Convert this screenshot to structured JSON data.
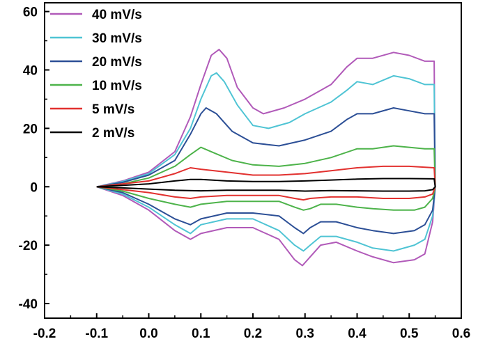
{
  "chart_data": {
    "type": "line",
    "title": "",
    "xlabel": "",
    "ylabel": "",
    "xlim": [
      -0.2,
      0.6
    ],
    "ylim": [
      -45,
      63
    ],
    "xticks": [
      "-0.2",
      "-0.1",
      "0.0",
      "0.1",
      "0.2",
      "0.3",
      "0.4",
      "0.5",
      "0.6"
    ],
    "yticks": [
      "60",
      "40",
      "20",
      "0",
      "-20",
      "-40"
    ],
    "xtick_values": [
      -0.2,
      -0.1,
      0.0,
      0.1,
      0.2,
      0.3,
      0.4,
      0.5,
      0.6
    ],
    "ytick_values": [
      60,
      40,
      20,
      0,
      -20,
      -40
    ],
    "grid": false,
    "legend_position": "top-left",
    "series": [
      {
        "name": "40 mV/s",
        "color": "#b15ab9",
        "anodic": [
          [
            -0.1,
            0
          ],
          [
            -0.05,
            2
          ],
          [
            0.0,
            5
          ],
          [
            0.05,
            12
          ],
          [
            0.08,
            24
          ],
          [
            0.1,
            35
          ],
          [
            0.12,
            45
          ],
          [
            0.135,
            47
          ],
          [
            0.15,
            44
          ],
          [
            0.17,
            34
          ],
          [
            0.2,
            27
          ],
          [
            0.22,
            25
          ],
          [
            0.26,
            27
          ],
          [
            0.3,
            30
          ],
          [
            0.35,
            35
          ],
          [
            0.38,
            41
          ],
          [
            0.4,
            44
          ],
          [
            0.43,
            44
          ],
          [
            0.47,
            46
          ],
          [
            0.5,
            45
          ],
          [
            0.53,
            43
          ],
          [
            0.548,
            43
          ]
        ],
        "cathodic": [
          [
            0.55,
            0
          ],
          [
            0.545,
            -12
          ],
          [
            0.53,
            -23
          ],
          [
            0.51,
            -25
          ],
          [
            0.47,
            -26
          ],
          [
            0.43,
            -24
          ],
          [
            0.4,
            -22
          ],
          [
            0.36,
            -19
          ],
          [
            0.33,
            -20
          ],
          [
            0.31,
            -24
          ],
          [
            0.295,
            -27
          ],
          [
            0.28,
            -25
          ],
          [
            0.25,
            -18
          ],
          [
            0.2,
            -14
          ],
          [
            0.15,
            -14
          ],
          [
            0.1,
            -16
          ],
          [
            0.08,
            -18
          ],
          [
            0.05,
            -15
          ],
          [
            0.0,
            -8
          ],
          [
            -0.05,
            -3
          ],
          [
            -0.1,
            0
          ]
        ]
      },
      {
        "name": "30 mV/s",
        "color": "#4fc4d4",
        "anodic": [
          [
            -0.1,
            0
          ],
          [
            -0.05,
            1.8
          ],
          [
            0.0,
            4.5
          ],
          [
            0.05,
            11
          ],
          [
            0.08,
            20
          ],
          [
            0.1,
            30
          ],
          [
            0.12,
            38
          ],
          [
            0.13,
            39
          ],
          [
            0.145,
            36
          ],
          [
            0.17,
            28
          ],
          [
            0.2,
            21
          ],
          [
            0.23,
            20
          ],
          [
            0.27,
            22
          ],
          [
            0.3,
            25
          ],
          [
            0.35,
            29
          ],
          [
            0.38,
            33
          ],
          [
            0.4,
            36
          ],
          [
            0.43,
            35
          ],
          [
            0.47,
            38
          ],
          [
            0.5,
            37
          ],
          [
            0.53,
            35
          ],
          [
            0.548,
            35
          ]
        ],
        "cathodic": [
          [
            0.55,
            0
          ],
          [
            0.545,
            -10
          ],
          [
            0.53,
            -18
          ],
          [
            0.51,
            -20
          ],
          [
            0.47,
            -22
          ],
          [
            0.43,
            -21
          ],
          [
            0.4,
            -19
          ],
          [
            0.36,
            -17
          ],
          [
            0.33,
            -17
          ],
          [
            0.31,
            -20
          ],
          [
            0.297,
            -22
          ],
          [
            0.28,
            -20
          ],
          [
            0.25,
            -15
          ],
          [
            0.2,
            -11
          ],
          [
            0.15,
            -11
          ],
          [
            0.1,
            -13
          ],
          [
            0.08,
            -16
          ],
          [
            0.05,
            -13
          ],
          [
            0.0,
            -7
          ],
          [
            -0.05,
            -2.5
          ],
          [
            -0.1,
            0
          ]
        ]
      },
      {
        "name": "20 mV/s",
        "color": "#2c4f96",
        "anodic": [
          [
            -0.1,
            0
          ],
          [
            -0.05,
            1.5
          ],
          [
            0.0,
            4
          ],
          [
            0.05,
            9
          ],
          [
            0.08,
            18
          ],
          [
            0.1,
            25
          ],
          [
            0.11,
            27
          ],
          [
            0.13,
            25
          ],
          [
            0.16,
            19
          ],
          [
            0.2,
            15
          ],
          [
            0.25,
            14
          ],
          [
            0.3,
            16
          ],
          [
            0.35,
            19
          ],
          [
            0.38,
            23
          ],
          [
            0.4,
            25
          ],
          [
            0.43,
            25
          ],
          [
            0.47,
            27
          ],
          [
            0.5,
            26
          ],
          [
            0.53,
            25
          ],
          [
            0.548,
            25
          ]
        ],
        "cathodic": [
          [
            0.55,
            0
          ],
          [
            0.545,
            -8
          ],
          [
            0.53,
            -13
          ],
          [
            0.51,
            -15
          ],
          [
            0.47,
            -16
          ],
          [
            0.43,
            -15
          ],
          [
            0.4,
            -14
          ],
          [
            0.36,
            -12
          ],
          [
            0.33,
            -12
          ],
          [
            0.31,
            -14
          ],
          [
            0.297,
            -16
          ],
          [
            0.28,
            -14
          ],
          [
            0.25,
            -10
          ],
          [
            0.2,
            -9
          ],
          [
            0.15,
            -9
          ],
          [
            0.1,
            -11
          ],
          [
            0.08,
            -13
          ],
          [
            0.05,
            -11
          ],
          [
            0.0,
            -6
          ],
          [
            -0.05,
            -2
          ],
          [
            -0.1,
            0
          ]
        ]
      },
      {
        "name": "10 mV/s",
        "color": "#4db34a",
        "anodic": [
          [
            -0.1,
            0
          ],
          [
            -0.05,
            1
          ],
          [
            0.0,
            3
          ],
          [
            0.05,
            7
          ],
          [
            0.08,
            11
          ],
          [
            0.1,
            13.5
          ],
          [
            0.12,
            12
          ],
          [
            0.16,
            9
          ],
          [
            0.2,
            7.5
          ],
          [
            0.25,
            7
          ],
          [
            0.3,
            8
          ],
          [
            0.35,
            10
          ],
          [
            0.4,
            13
          ],
          [
            0.43,
            13
          ],
          [
            0.47,
            14
          ],
          [
            0.5,
            13.5
          ],
          [
            0.53,
            13
          ],
          [
            0.548,
            13
          ]
        ],
        "cathodic": [
          [
            0.55,
            0
          ],
          [
            0.545,
            -4
          ],
          [
            0.53,
            -7
          ],
          [
            0.51,
            -8
          ],
          [
            0.47,
            -8
          ],
          [
            0.43,
            -7.5
          ],
          [
            0.4,
            -7
          ],
          [
            0.36,
            -6
          ],
          [
            0.33,
            -6
          ],
          [
            0.31,
            -7.5
          ],
          [
            0.297,
            -8
          ],
          [
            0.28,
            -7
          ],
          [
            0.25,
            -5
          ],
          [
            0.2,
            -5
          ],
          [
            0.15,
            -5
          ],
          [
            0.1,
            -6
          ],
          [
            0.08,
            -7
          ],
          [
            0.05,
            -6
          ],
          [
            0.0,
            -4
          ],
          [
            -0.05,
            -1.5
          ],
          [
            -0.1,
            0
          ]
        ]
      },
      {
        "name": "5 mV/s",
        "color": "#e2312f",
        "anodic": [
          [
            -0.1,
            0
          ],
          [
            -0.05,
            1
          ],
          [
            0.0,
            2
          ],
          [
            0.05,
            4.5
          ],
          [
            0.08,
            6.5
          ],
          [
            0.1,
            6
          ],
          [
            0.15,
            5
          ],
          [
            0.2,
            4
          ],
          [
            0.25,
            4
          ],
          [
            0.3,
            4.5
          ],
          [
            0.35,
            5.5
          ],
          [
            0.4,
            6.5
          ],
          [
            0.45,
            7
          ],
          [
            0.5,
            7
          ],
          [
            0.548,
            6.5
          ]
        ],
        "cathodic": [
          [
            0.55,
            0
          ],
          [
            0.545,
            -2.5
          ],
          [
            0.53,
            -3.5
          ],
          [
            0.5,
            -4
          ],
          [
            0.45,
            -4
          ],
          [
            0.4,
            -3.5
          ],
          [
            0.35,
            -3.5
          ],
          [
            0.31,
            -4
          ],
          [
            0.297,
            -4.5
          ],
          [
            0.28,
            -4
          ],
          [
            0.25,
            -3
          ],
          [
            0.2,
            -3
          ],
          [
            0.15,
            -3
          ],
          [
            0.1,
            -3.5
          ],
          [
            0.08,
            -4
          ],
          [
            0.05,
            -3.5
          ],
          [
            0.0,
            -2
          ],
          [
            -0.05,
            -1
          ],
          [
            -0.1,
            0
          ]
        ]
      },
      {
        "name": "2 mV/s",
        "color": "#000000",
        "anodic": [
          [
            -0.1,
            0
          ],
          [
            -0.05,
            0.5
          ],
          [
            0.0,
            1
          ],
          [
            0.05,
            2
          ],
          [
            0.08,
            2.5
          ],
          [
            0.1,
            2.5
          ],
          [
            0.15,
            2
          ],
          [
            0.2,
            1.8
          ],
          [
            0.25,
            1.8
          ],
          [
            0.3,
            2
          ],
          [
            0.35,
            2.3
          ],
          [
            0.4,
            2.6
          ],
          [
            0.45,
            2.8
          ],
          [
            0.5,
            2.8
          ],
          [
            0.548,
            2.7
          ]
        ],
        "cathodic": [
          [
            0.55,
            0
          ],
          [
            0.545,
            -1
          ],
          [
            0.53,
            -1.4
          ],
          [
            0.5,
            -1.5
          ],
          [
            0.45,
            -1.5
          ],
          [
            0.4,
            -1.4
          ],
          [
            0.35,
            -1.3
          ],
          [
            0.3,
            -1.5
          ],
          [
            0.25,
            -1.2
          ],
          [
            0.2,
            -1.2
          ],
          [
            0.15,
            -1.2
          ],
          [
            0.1,
            -1.4
          ],
          [
            0.05,
            -1.2
          ],
          [
            0.0,
            -0.8
          ],
          [
            -0.05,
            -0.4
          ],
          [
            -0.1,
            0
          ]
        ]
      }
    ]
  }
}
